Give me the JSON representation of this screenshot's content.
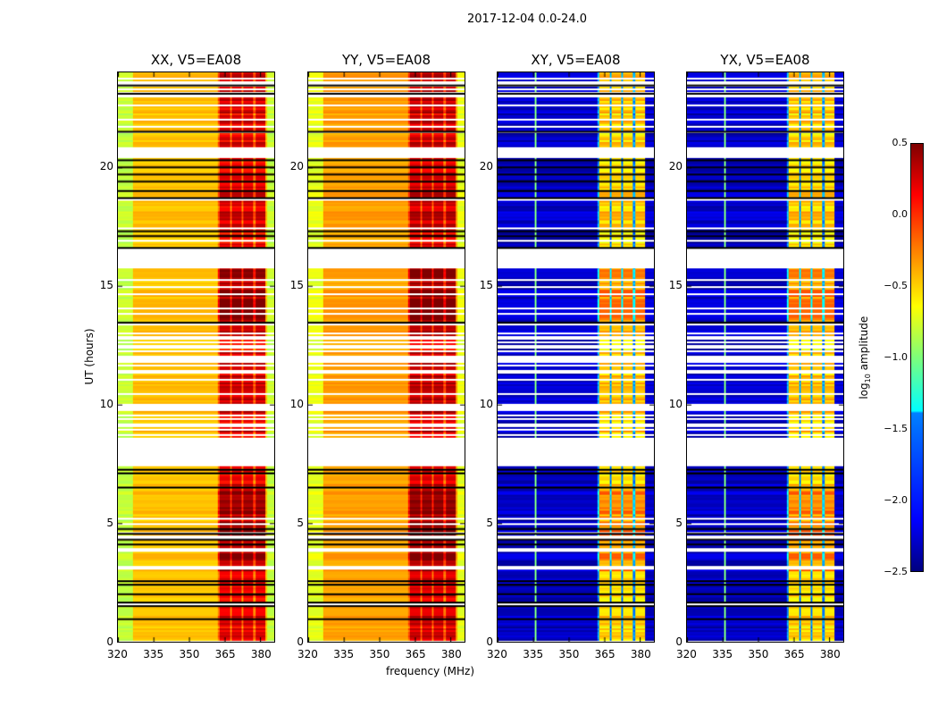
{
  "chart_data": {
    "type": "heatmap",
    "suptitle": "2017-12-04 0.0-24.0",
    "xlabel": "frequency (MHz)",
    "ylabel": "UT (hours)",
    "xlim": [
      320,
      386
    ],
    "ylim": [
      0,
      24
    ],
    "xticks": [
      "320",
      "335",
      "350",
      "365",
      "380"
    ],
    "yticks": [
      "0",
      "5",
      "10",
      "15",
      "20"
    ],
    "colorbar": {
      "label_prefix": "log",
      "label_sub": "10",
      "label_suffix": " amplitude",
      "range": [
        -2.5,
        0.5
      ],
      "ticks": [
        "0.5",
        "0.0",
        "−0.5",
        "−1.0",
        "−1.5",
        "−2.0",
        "−2.5"
      ],
      "colormap": "jet"
    },
    "panels": [
      {
        "title": "XX, V5=EA08",
        "background_level": -0.45,
        "band_level": 0.2
      },
      {
        "title": "YY, V5=EA08",
        "background_level": -0.35,
        "band_level": 0.25
      },
      {
        "title": "XY, V5=EA08",
        "background_level": -2.3,
        "band_level": -0.5
      },
      {
        "title": "YX, V5=EA08",
        "background_level": -2.3,
        "band_level": -0.5
      }
    ],
    "band_mhz": [
      362,
      382
    ],
    "flagged_hours": [
      [
        7.5,
        8.45
      ],
      [
        15.75,
        16.55
      ]
    ],
    "dense_flag_hours": [
      [
        8.45,
        13.5
      ],
      [
        20.5,
        24
      ]
    ],
    "black_line_hours": [
      0.95,
      1.5,
      1.65,
      2.0,
      2.4,
      2.55,
      4.1,
      4.3,
      4.55,
      4.75,
      6.5,
      7.1,
      7.25,
      13.45,
      16.6,
      17.1,
      17.3,
      18.7,
      19.0,
      19.4,
      19.7,
      20.0,
      20.3,
      21.5,
      23.1,
      23.45
    ]
  }
}
